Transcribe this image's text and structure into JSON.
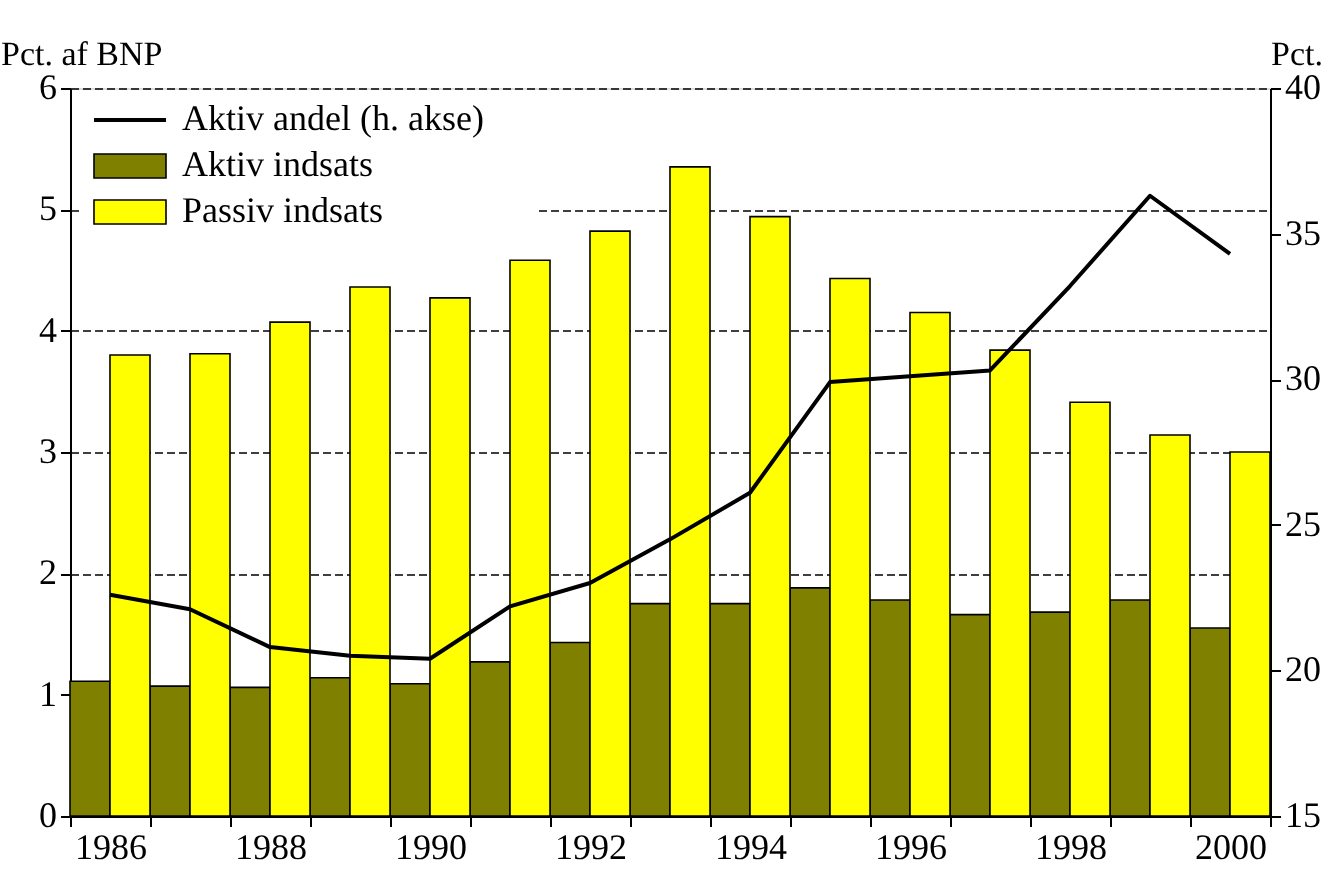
{
  "chart_data": {
    "type": "bar",
    "ylabel": "Pct. af BNP",
    "y2label": "Pct.",
    "categories": [
      "1986",
      null,
      "1988",
      null,
      "1990",
      null,
      "1992",
      null,
      "1994",
      null,
      "1996",
      null,
      "1998",
      null,
      "2000"
    ],
    "series": [
      {
        "name": "Aktiv andel (h. akse)",
        "type": "line",
        "axis": "y2",
        "color": "#000000",
        "values": [
          22.6,
          22.1,
          20.8,
          20.5,
          20.4,
          22.2,
          23.0,
          24.5,
          26.1,
          29.9,
          30.1,
          30.3,
          33.2,
          36.3,
          34.3
        ]
      },
      {
        "name": "Aktiv indsats",
        "color": "#808000",
        "values": [
          1.11,
          1.07,
          1.06,
          1.14,
          1.09,
          1.27,
          1.43,
          1.75,
          1.75,
          1.88,
          1.78,
          1.66,
          1.68,
          1.78,
          1.55
        ]
      },
      {
        "name": "Passiv indsats",
        "color": "#ffff00",
        "values": [
          3.8,
          3.81,
          4.07,
          4.36,
          4.27,
          4.58,
          4.82,
          5.35,
          4.94,
          4.43,
          4.15,
          3.84,
          3.41,
          3.14,
          3.0
        ]
      }
    ],
    "ylim": [
      0,
      6
    ],
    "yticks": [
      0,
      1,
      2,
      3,
      4,
      5,
      6
    ],
    "y2lim": [
      15,
      40
    ],
    "y2ticks": [
      15,
      20,
      25,
      30,
      35,
      40
    ],
    "grid": "y",
    "legend": "top left",
    "line_style": "solid",
    "marker": "none"
  }
}
